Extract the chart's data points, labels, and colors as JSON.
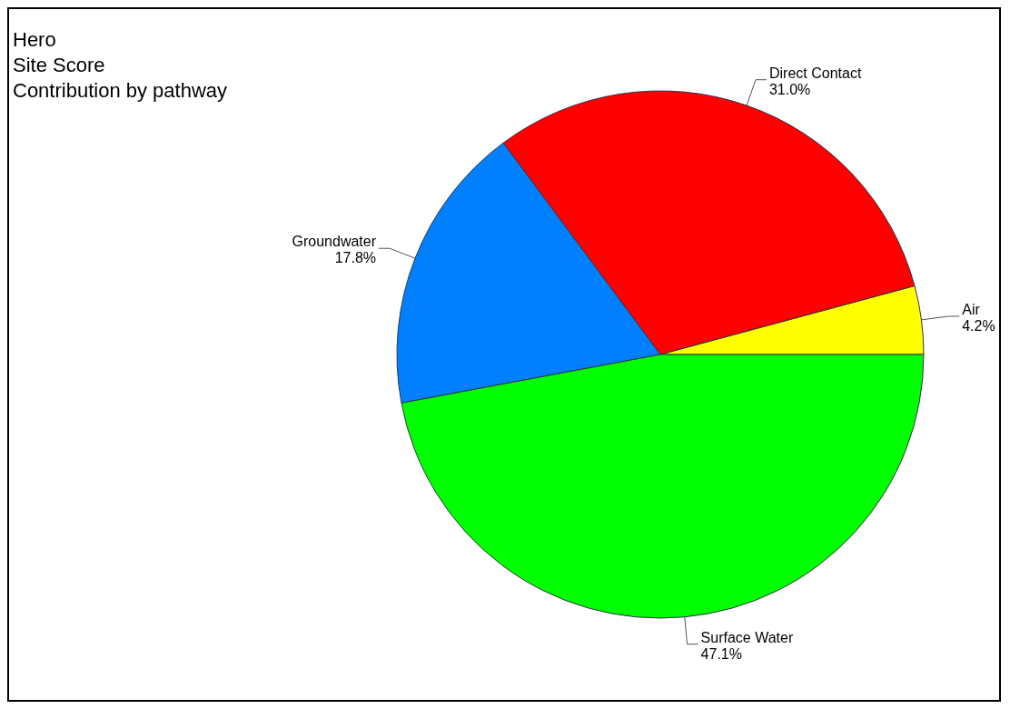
{
  "chart_data": {
    "type": "pie",
    "title": "Hero",
    "subtitle": "Site Score\nContribution by pathway",
    "categories": [
      "Air",
      "Direct Contact",
      "Groundwater",
      "Surface Water"
    ],
    "values": [
      4.2,
      31.0,
      17.8,
      47.1
    ],
    "colors": [
      "#ffff00",
      "#ff0000",
      "#0080ff",
      "#00ff00"
    ],
    "value_labels": [
      "4.2%",
      "31.0%",
      "17.8%",
      "47.1%"
    ],
    "legend": false
  }
}
